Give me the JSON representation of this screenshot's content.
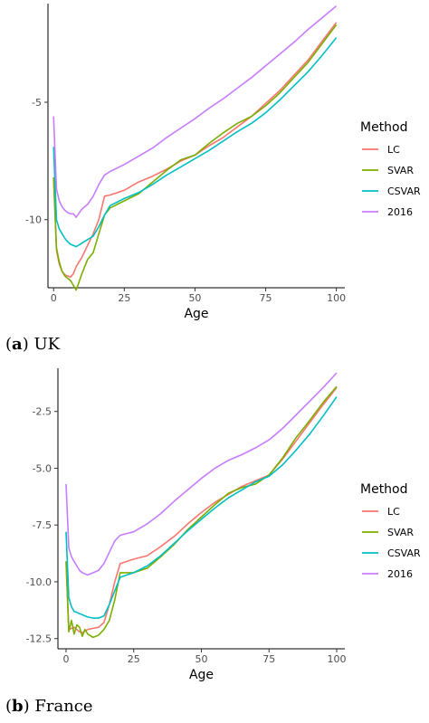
{
  "chart_data": [
    {
      "id": "uk",
      "type": "line",
      "caption": {
        "prefix": "(",
        "letter": "a",
        "suffix": ") UK"
      },
      "xlabel": "Age",
      "ylabel": "",
      "xlim": [
        -2,
        103
      ],
      "ylim": [
        -12.9,
        -0.8
      ],
      "xticks": [
        0,
        25,
        50,
        75,
        100
      ],
      "yticks": [
        -5,
        -10
      ],
      "legend": {
        "title": "Method",
        "position": "right"
      },
      "grid": false,
      "series": [
        {
          "name": "LC",
          "color": "#F8766D",
          "x": [
            0,
            1,
            2,
            3,
            4,
            5,
            6,
            7,
            8,
            10,
            12,
            14,
            16,
            18,
            20,
            25,
            30,
            35,
            40,
            45,
            50,
            55,
            60,
            65,
            70,
            75,
            80,
            85,
            90,
            95,
            100
          ],
          "y": [
            -8.2,
            -11.3,
            -11.9,
            -12.2,
            -12.35,
            -12.4,
            -12.45,
            -12.3,
            -12.0,
            -11.6,
            -11.1,
            -10.6,
            -10.0,
            -9.0,
            -8.95,
            -8.75,
            -8.4,
            -8.15,
            -7.85,
            -7.5,
            -7.25,
            -6.85,
            -6.5,
            -6.05,
            -5.6,
            -5.05,
            -4.5,
            -3.85,
            -3.2,
            -2.4,
            -1.6
          ]
        },
        {
          "name": "SVAR",
          "color": "#7CAE00",
          "x": [
            0,
            1,
            2,
            3,
            4,
            5,
            6,
            7,
            8,
            10,
            12,
            14,
            16,
            18,
            20,
            25,
            30,
            35,
            40,
            45,
            50,
            55,
            60,
            65,
            70,
            75,
            80,
            85,
            90,
            95,
            100
          ],
          "y": [
            -8.2,
            -11.2,
            -11.8,
            -12.2,
            -12.4,
            -12.5,
            -12.6,
            -12.8,
            -13.0,
            -12.3,
            -11.7,
            -11.4,
            -10.6,
            -9.8,
            -9.5,
            -9.2,
            -8.9,
            -8.4,
            -7.9,
            -7.45,
            -7.25,
            -6.75,
            -6.3,
            -5.9,
            -5.6,
            -5.15,
            -4.6,
            -3.95,
            -3.3,
            -2.5,
            -1.7
          ]
        },
        {
          "name": "CSVAR",
          "color": "#00BFC4",
          "x": [
            0,
            1,
            2,
            3,
            4,
            5,
            6,
            7,
            8,
            10,
            12,
            14,
            16,
            18,
            20,
            25,
            30,
            35,
            40,
            45,
            50,
            55,
            60,
            65,
            70,
            75,
            80,
            85,
            90,
            95,
            100
          ],
          "y": [
            -6.9,
            -10.0,
            -10.4,
            -10.6,
            -10.8,
            -10.95,
            -11.05,
            -11.1,
            -11.15,
            -11.0,
            -10.85,
            -10.7,
            -10.3,
            -9.8,
            -9.4,
            -9.1,
            -8.85,
            -8.5,
            -8.1,
            -7.75,
            -7.4,
            -7.05,
            -6.65,
            -6.25,
            -5.9,
            -5.45,
            -4.9,
            -4.3,
            -3.7,
            -3.0,
            -2.25
          ]
        },
        {
          "name": "2016",
          "color": "#C77CFF",
          "x": [
            0,
            1,
            2,
            3,
            4,
            5,
            6,
            7,
            8,
            10,
            12,
            14,
            16,
            18,
            20,
            25,
            30,
            35,
            40,
            45,
            50,
            55,
            60,
            65,
            70,
            75,
            80,
            85,
            90,
            95,
            100
          ],
          "y": [
            -5.6,
            -8.7,
            -9.2,
            -9.45,
            -9.6,
            -9.7,
            -9.75,
            -9.75,
            -9.9,
            -9.55,
            -9.35,
            -9.0,
            -8.5,
            -8.1,
            -7.95,
            -7.65,
            -7.3,
            -6.95,
            -6.5,
            -6.1,
            -5.7,
            -5.25,
            -4.85,
            -4.4,
            -3.95,
            -3.45,
            -2.95,
            -2.45,
            -1.9,
            -1.4,
            -0.9
          ]
        }
      ]
    },
    {
      "id": "france",
      "type": "line",
      "caption": {
        "prefix": "(",
        "letter": "b",
        "suffix": ") France"
      },
      "xlabel": "Age",
      "ylabel": "",
      "xlim": [
        -3,
        103
      ],
      "ylim": [
        -12.95,
        -0.6
      ],
      "xticks": [
        0,
        25,
        50,
        75,
        100
      ],
      "yticks": [
        -2.5,
        -5.0,
        -7.5,
        -10.0,
        -12.5
      ],
      "ytick_labels": [
        "-2.5",
        "-5.0",
        "-7.5",
        "-10.0",
        "-12.5"
      ],
      "legend": {
        "title": "Method",
        "position": "right"
      },
      "grid": false,
      "series": [
        {
          "name": "LC",
          "color": "#F8766D",
          "x": [
            0,
            1,
            2,
            3,
            4,
            5,
            6,
            7,
            8,
            10,
            12,
            14,
            16,
            18,
            20,
            25,
            30,
            35,
            40,
            45,
            50,
            55,
            60,
            65,
            70,
            75,
            80,
            85,
            90,
            95,
            100
          ],
          "y": [
            -9.1,
            -12.1,
            -12.05,
            -12.0,
            -12.1,
            -12.2,
            -12.25,
            -12.15,
            -12.1,
            -12.05,
            -12.0,
            -11.8,
            -11.0,
            -10.0,
            -9.2,
            -9.0,
            -8.85,
            -8.45,
            -8.0,
            -7.45,
            -6.95,
            -6.5,
            -6.15,
            -5.8,
            -5.55,
            -5.3,
            -4.6,
            -3.8,
            -3.0,
            -2.2,
            -1.45
          ]
        },
        {
          "name": "SVAR",
          "color": "#7CAE00",
          "x": [
            0,
            1,
            2,
            3,
            4,
            5,
            6,
            7,
            8,
            10,
            12,
            14,
            16,
            18,
            20,
            25,
            30,
            35,
            40,
            45,
            50,
            55,
            60,
            65,
            70,
            75,
            80,
            85,
            90,
            95,
            100
          ],
          "y": [
            -9.1,
            -12.2,
            -11.7,
            -12.3,
            -11.9,
            -12.0,
            -12.4,
            -12.1,
            -12.3,
            -12.45,
            -12.35,
            -12.1,
            -11.7,
            -10.8,
            -9.6,
            -9.6,
            -9.4,
            -8.9,
            -8.35,
            -7.7,
            -7.15,
            -6.6,
            -6.1,
            -5.85,
            -5.7,
            -5.3,
            -4.55,
            -3.65,
            -2.9,
            -2.1,
            -1.4
          ]
        },
        {
          "name": "CSVAR",
          "color": "#00BFC4",
          "x": [
            0,
            1,
            2,
            3,
            4,
            5,
            6,
            7,
            8,
            10,
            12,
            14,
            16,
            18,
            20,
            25,
            30,
            35,
            40,
            45,
            50,
            55,
            60,
            65,
            70,
            75,
            80,
            85,
            90,
            95,
            100
          ],
          "y": [
            -7.8,
            -10.7,
            -11.1,
            -11.3,
            -11.35,
            -11.4,
            -11.45,
            -11.5,
            -11.55,
            -11.6,
            -11.6,
            -11.5,
            -11.0,
            -10.4,
            -9.8,
            -9.6,
            -9.3,
            -8.85,
            -8.3,
            -7.75,
            -7.25,
            -6.75,
            -6.3,
            -5.95,
            -5.6,
            -5.35,
            -4.85,
            -4.2,
            -3.5,
            -2.7,
            -1.85
          ]
        },
        {
          "name": "2016",
          "color": "#C77CFF",
          "x": [
            0,
            1,
            2,
            3,
            4,
            5,
            6,
            7,
            8,
            10,
            12,
            14,
            16,
            18,
            20,
            25,
            30,
            35,
            40,
            45,
            50,
            55,
            60,
            65,
            70,
            75,
            80,
            85,
            90,
            95,
            100
          ],
          "y": [
            -5.7,
            -8.5,
            -8.9,
            -9.1,
            -9.3,
            -9.5,
            -9.6,
            -9.65,
            -9.7,
            -9.6,
            -9.5,
            -9.2,
            -8.7,
            -8.2,
            -7.95,
            -7.8,
            -7.45,
            -7.0,
            -6.45,
            -5.95,
            -5.45,
            -5.0,
            -4.65,
            -4.4,
            -4.1,
            -3.75,
            -3.25,
            -2.65,
            -2.05,
            -1.45,
            -0.8
          ]
        }
      ]
    }
  ]
}
